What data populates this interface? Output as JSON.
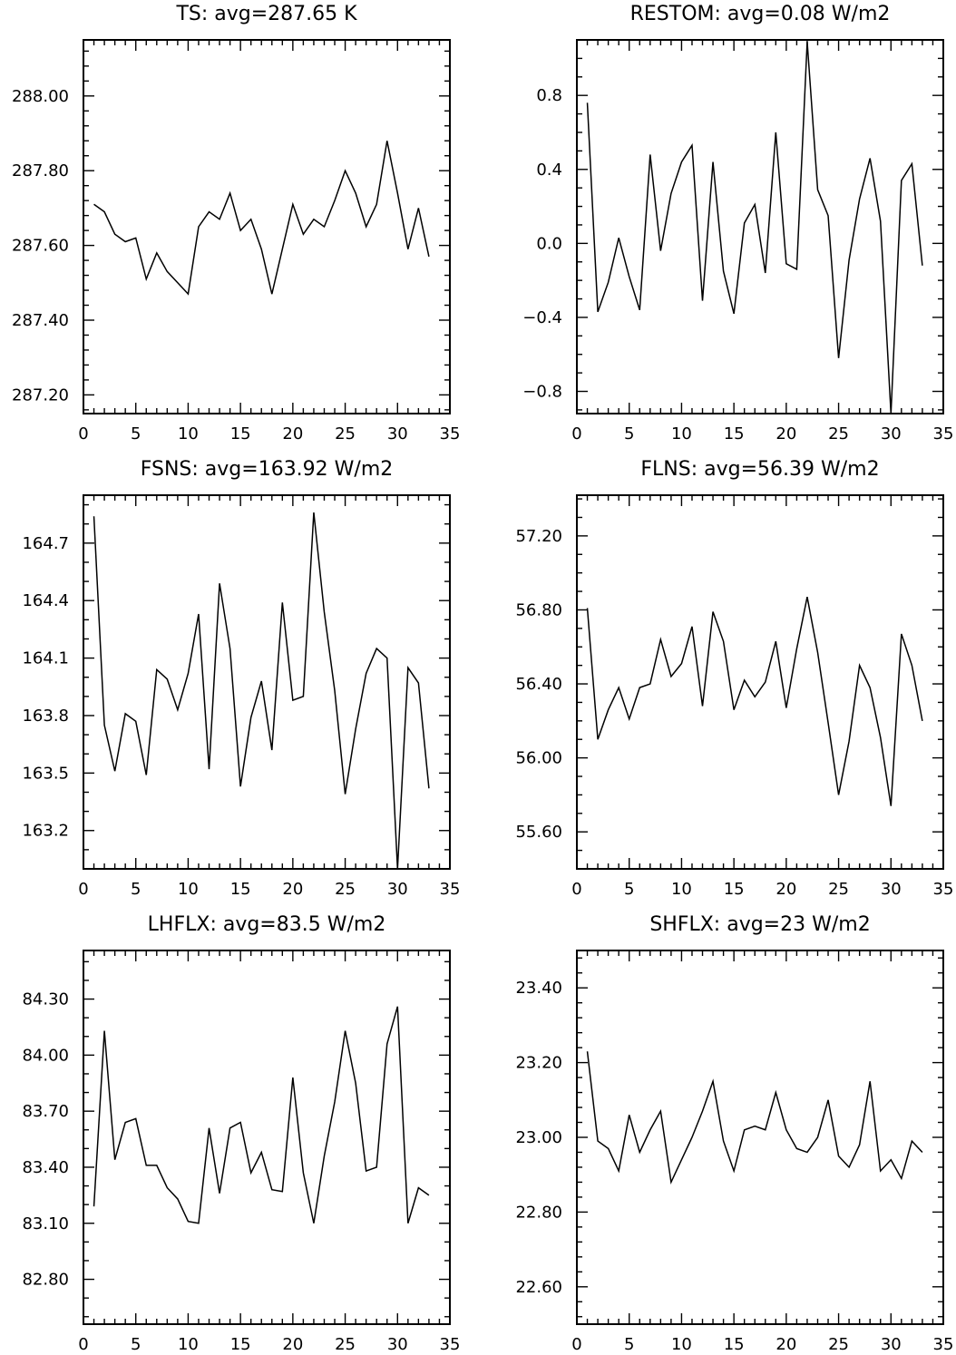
{
  "chart_data": [
    {
      "type": "line",
      "title": "TS: avg=287.65 K",
      "xlim": [
        0,
        35
      ],
      "ylim": [
        287.15,
        288.15
      ],
      "x_ticks": [
        0,
        5,
        10,
        15,
        20,
        25,
        30,
        35
      ],
      "x_tick_labels": [
        "0",
        "5",
        "10",
        "15",
        "20",
        "25",
        "30",
        "35"
      ],
      "y_ticks": [
        287.2,
        287.4,
        287.6,
        287.8,
        288.0
      ],
      "y_tick_labels": [
        "287.20",
        "287.40",
        "287.60",
        "287.80",
        "288.00"
      ],
      "x_minor_step": 1,
      "y_minor_step": 0.04,
      "series": [
        {
          "x": [
            1,
            2,
            3,
            4,
            5,
            6,
            7,
            8,
            9,
            10,
            11,
            12,
            13,
            14,
            15,
            16,
            17,
            18,
            19,
            20,
            21,
            22,
            23,
            24,
            25,
            26,
            27,
            28,
            29,
            30,
            31,
            32,
            33
          ],
          "y": [
            287.71,
            287.69,
            287.63,
            287.61,
            287.62,
            287.51,
            287.58,
            287.53,
            287.5,
            287.47,
            287.65,
            287.69,
            287.67,
            287.74,
            287.64,
            287.67,
            287.59,
            287.47,
            287.59,
            287.71,
            287.63,
            287.67,
            287.65,
            287.72,
            287.8,
            287.74,
            287.65,
            287.71,
            287.88,
            287.74,
            287.59,
            287.7,
            287.57
          ]
        }
      ]
    },
    {
      "type": "line",
      "title": "RESTOM: avg=0.08 W/m2",
      "xlim": [
        0,
        35
      ],
      "ylim": [
        -0.92,
        1.1
      ],
      "x_ticks": [
        0,
        5,
        10,
        15,
        20,
        25,
        30,
        35
      ],
      "x_tick_labels": [
        "0",
        "5",
        "10",
        "15",
        "20",
        "25",
        "30",
        "35"
      ],
      "y_ticks": [
        -0.8,
        -0.4,
        0.0,
        0.4,
        0.8
      ],
      "y_tick_labels": [
        "−0.8",
        "−0.4",
        "0.0",
        "0.4",
        "0.8"
      ],
      "x_minor_step": 1,
      "y_minor_step": 0.1,
      "series": [
        {
          "x": [
            1,
            2,
            3,
            4,
            5,
            6,
            7,
            8,
            9,
            10,
            11,
            12,
            13,
            14,
            15,
            16,
            17,
            18,
            19,
            20,
            21,
            22,
            23,
            24,
            25,
            26,
            27,
            28,
            29,
            30,
            31,
            32,
            33
          ],
          "y": [
            0.76,
            -0.37,
            -0.21,
            0.03,
            -0.18,
            -0.36,
            0.48,
            -0.04,
            0.27,
            0.44,
            0.53,
            -0.31,
            0.44,
            -0.15,
            -0.38,
            0.11,
            0.21,
            -0.16,
            0.6,
            -0.11,
            -0.14,
            1.09,
            0.29,
            0.15,
            -0.62,
            -0.09,
            0.24,
            0.46,
            0.12,
            -0.92,
            0.34,
            0.43,
            -0.12
          ]
        }
      ]
    },
    {
      "type": "line",
      "title": "FSNS: avg=163.92 W/m2",
      "xlim": [
        0,
        35
      ],
      "ylim": [
        163.0,
        164.95
      ],
      "x_ticks": [
        0,
        5,
        10,
        15,
        20,
        25,
        30,
        35
      ],
      "x_tick_labels": [
        "0",
        "5",
        "10",
        "15",
        "20",
        "25",
        "30",
        "35"
      ],
      "y_ticks": [
        163.2,
        163.5,
        163.8,
        164.1,
        164.4,
        164.7
      ],
      "y_tick_labels": [
        "163.2",
        "163.5",
        "163.8",
        "164.1",
        "164.4",
        "164.7"
      ],
      "x_minor_step": 1,
      "y_minor_step": 0.1,
      "series": [
        {
          "x": [
            1,
            2,
            3,
            4,
            5,
            6,
            7,
            8,
            9,
            10,
            11,
            12,
            13,
            14,
            15,
            16,
            17,
            18,
            19,
            20,
            21,
            22,
            23,
            24,
            25,
            26,
            27,
            28,
            29,
            30,
            31,
            32,
            33
          ],
          "y": [
            164.84,
            163.75,
            163.51,
            163.81,
            163.77,
            163.49,
            164.04,
            163.99,
            163.83,
            164.02,
            164.33,
            163.52,
            164.49,
            164.15,
            163.43,
            163.79,
            163.98,
            163.62,
            164.39,
            163.88,
            163.9,
            164.86,
            164.34,
            163.93,
            163.39,
            163.73,
            164.02,
            164.15,
            164.1,
            163.0,
            164.05,
            163.97,
            163.42
          ]
        }
      ]
    },
    {
      "type": "line",
      "title": "FLNS: avg=56.39 W/m2",
      "xlim": [
        0,
        35
      ],
      "ylim": [
        55.4,
        57.42
      ],
      "x_ticks": [
        0,
        5,
        10,
        15,
        20,
        25,
        30,
        35
      ],
      "x_tick_labels": [
        "0",
        "5",
        "10",
        "15",
        "20",
        "25",
        "30",
        "35"
      ],
      "y_ticks": [
        55.6,
        56.0,
        56.4,
        56.8,
        57.2
      ],
      "y_tick_labels": [
        "55.60",
        "56.00",
        "56.40",
        "56.80",
        "57.20"
      ],
      "x_minor_step": 1,
      "y_minor_step": 0.1,
      "series": [
        {
          "x": [
            1,
            2,
            3,
            4,
            5,
            6,
            7,
            8,
            9,
            10,
            11,
            12,
            13,
            14,
            15,
            16,
            17,
            18,
            19,
            20,
            21,
            22,
            23,
            24,
            25,
            26,
            27,
            28,
            29,
            30,
            31,
            32,
            33
          ],
          "y": [
            56.81,
            56.1,
            56.26,
            56.38,
            56.21,
            56.38,
            56.4,
            56.64,
            56.44,
            56.51,
            56.71,
            56.28,
            56.79,
            56.63,
            56.26,
            56.42,
            56.33,
            56.41,
            56.63,
            56.27,
            56.59,
            56.87,
            56.57,
            56.19,
            55.8,
            56.09,
            56.5,
            56.38,
            56.11,
            55.74,
            56.67,
            56.5,
            56.2
          ]
        }
      ]
    },
    {
      "type": "line",
      "title": "LHFLX: avg=83.5 W/m2",
      "xlim": [
        0,
        35
      ],
      "ylim": [
        82.56,
        84.56
      ],
      "x_ticks": [
        0,
        5,
        10,
        15,
        20,
        25,
        30,
        35
      ],
      "x_tick_labels": [
        "0",
        "5",
        "10",
        "15",
        "20",
        "25",
        "30",
        "35"
      ],
      "y_ticks": [
        82.8,
        83.1,
        83.4,
        83.7,
        84.0,
        84.3
      ],
      "y_tick_labels": [
        "82.80",
        "83.10",
        "83.40",
        "83.70",
        "84.00",
        "84.30"
      ],
      "x_minor_step": 1,
      "y_minor_step": 0.1,
      "series": [
        {
          "x": [
            1,
            2,
            3,
            4,
            5,
            6,
            7,
            8,
            9,
            10,
            11,
            12,
            13,
            14,
            15,
            16,
            17,
            18,
            19,
            20,
            21,
            22,
            23,
            24,
            25,
            26,
            27,
            28,
            29,
            30,
            31,
            32,
            33
          ],
          "y": [
            83.19,
            84.13,
            83.44,
            83.64,
            83.66,
            83.41,
            83.41,
            83.29,
            83.23,
            83.11,
            83.1,
            83.61,
            83.26,
            83.61,
            83.64,
            83.37,
            83.48,
            83.28,
            83.27,
            83.88,
            83.37,
            83.1,
            83.46,
            83.75,
            84.13,
            83.85,
            83.38,
            83.4,
            84.06,
            84.26,
            83.1,
            83.29,
            83.25
          ]
        }
      ]
    },
    {
      "type": "line",
      "title": "SHFLX: avg=23 W/m2",
      "xlim": [
        0,
        35
      ],
      "ylim": [
        22.5,
        23.5
      ],
      "x_ticks": [
        0,
        5,
        10,
        15,
        20,
        25,
        30,
        35
      ],
      "x_tick_labels": [
        "0",
        "5",
        "10",
        "15",
        "20",
        "25",
        "30",
        "35"
      ],
      "y_ticks": [
        22.6,
        22.8,
        23.0,
        23.2,
        23.4
      ],
      "y_tick_labels": [
        "22.60",
        "22.80",
        "23.00",
        "23.20",
        "23.40"
      ],
      "x_minor_step": 1,
      "y_minor_step": 0.04,
      "series": [
        {
          "x": [
            1,
            2,
            3,
            4,
            5,
            6,
            7,
            8,
            9,
            10,
            11,
            12,
            13,
            14,
            15,
            16,
            17,
            18,
            19,
            20,
            21,
            22,
            23,
            24,
            25,
            26,
            27,
            28,
            29,
            30,
            31,
            32,
            33
          ],
          "y": [
            23.23,
            22.99,
            22.97,
            22.91,
            23.06,
            22.96,
            23.02,
            23.07,
            22.88,
            22.94,
            23.0,
            23.07,
            23.15,
            22.99,
            22.91,
            23.02,
            23.03,
            23.02,
            23.12,
            23.02,
            22.97,
            22.96,
            23.0,
            23.1,
            22.95,
            22.92,
            22.98,
            23.15,
            22.91,
            22.94,
            22.89,
            22.99,
            22.96
          ]
        }
      ]
    }
  ]
}
